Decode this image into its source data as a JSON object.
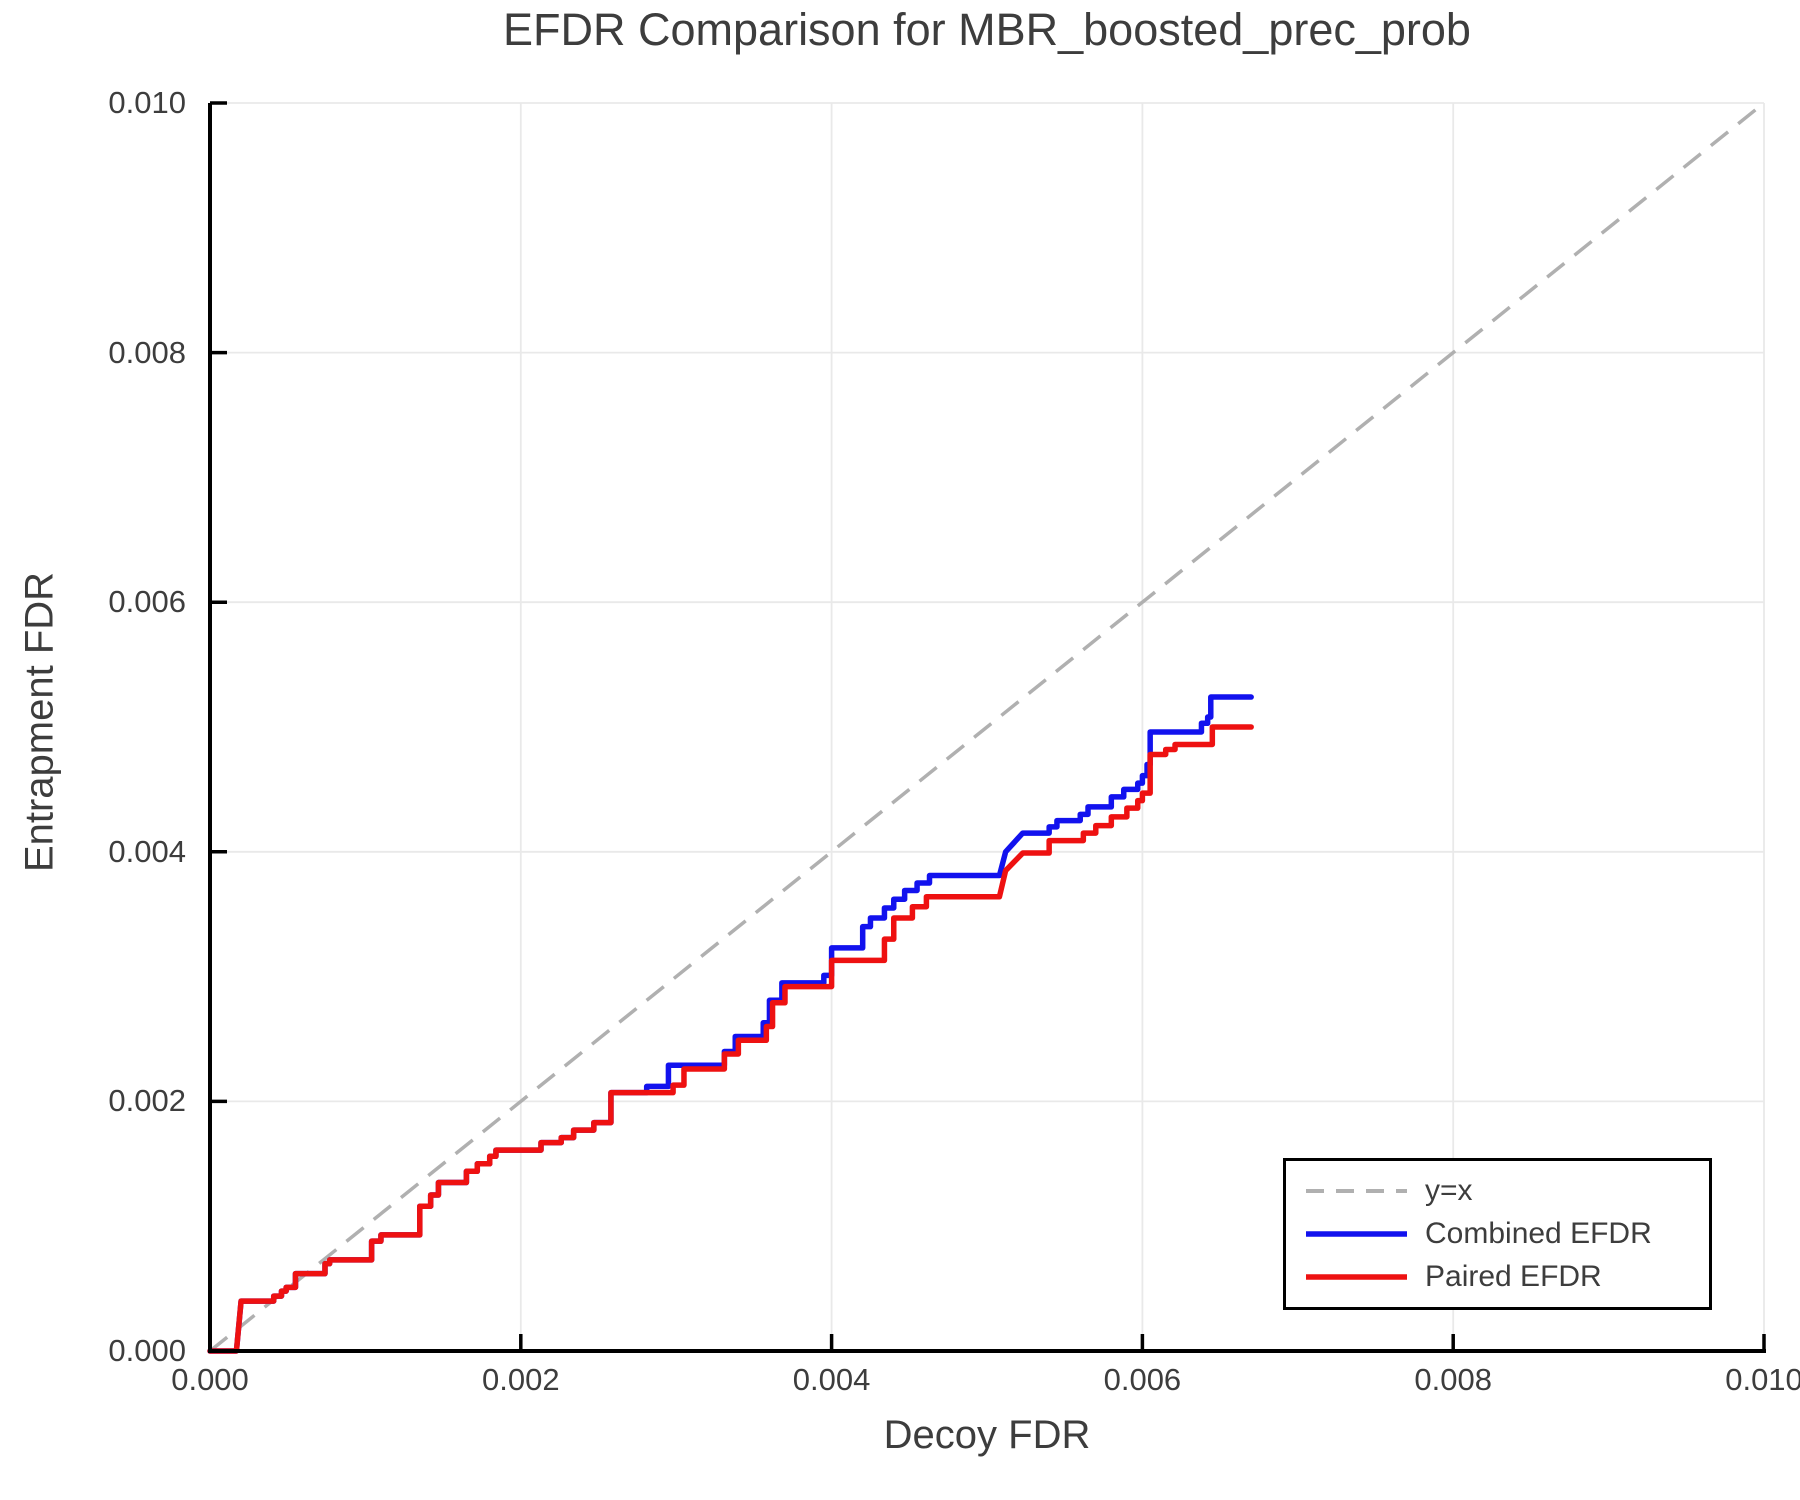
{
  "chart_data": {
    "type": "line",
    "title": "EFDR Comparison for MBR_boosted_prec_prob",
    "xlabel": "Decoy FDR",
    "ylabel": "Entrapment FDR",
    "xlim": [
      0,
      0.01
    ],
    "ylim": [
      0,
      0.01
    ],
    "xticks": [
      0,
      0.002,
      0.004,
      0.006,
      0.008,
      0.01
    ],
    "yticks": [
      0,
      0.002,
      0.004,
      0.006,
      0.008,
      0.01
    ],
    "xtick_labels": [
      "0.000",
      "0.002",
      "0.004",
      "0.006",
      "0.008",
      "0.010"
    ],
    "ytick_labels": [
      "0.000",
      "0.002",
      "0.004",
      "0.006",
      "0.008",
      "0.010"
    ],
    "grid": true,
    "grid_color": "#e9e9e9",
    "spine_color": "#000000",
    "text_color": "#3d3d3d",
    "legend_position": "lower right",
    "series": [
      {
        "name": "y=x",
        "color": "#b0b0b0",
        "style": "dashed",
        "width": 3.5,
        "points": [
          [
            0,
            0
          ],
          [
            0.01,
            0.01
          ]
        ]
      },
      {
        "name": "Combined EFDR",
        "color": "#1212ee",
        "style": "solid",
        "width": 5.5,
        "points": [
          [
            0,
            0
          ],
          [
            0.00017,
            0
          ],
          [
            0.0002,
            0.0004
          ],
          [
            0.00041,
            0.0004
          ],
          [
            0.00041,
            0.00044
          ],
          [
            0.00046,
            0.00044
          ],
          [
            0.00046,
            0.00048
          ],
          [
            0.00049,
            0.00048
          ],
          [
            0.00049,
            0.00051
          ],
          [
            0.00055,
            0.00051
          ],
          [
            0.00055,
            0.00062
          ],
          [
            0.00074,
            0.00062
          ],
          [
            0.00074,
            0.0007
          ],
          [
            0.00077,
            0.0007
          ],
          [
            0.00077,
            0.00073
          ],
          [
            0.00104,
            0.00073
          ],
          [
            0.00104,
            0.00088
          ],
          [
            0.0011,
            0.00088
          ],
          [
            0.0011,
            0.00093
          ],
          [
            0.00135,
            0.00093
          ],
          [
            0.00135,
            0.00116
          ],
          [
            0.00142,
            0.00116
          ],
          [
            0.00142,
            0.00125
          ],
          [
            0.00147,
            0.00125
          ],
          [
            0.00147,
            0.00135
          ],
          [
            0.00165,
            0.00135
          ],
          [
            0.00165,
            0.00144
          ],
          [
            0.00172,
            0.00144
          ],
          [
            0.00172,
            0.0015
          ],
          [
            0.0018,
            0.0015
          ],
          [
            0.0018,
            0.00156
          ],
          [
            0.00184,
            0.00156
          ],
          [
            0.00184,
            0.00161
          ],
          [
            0.00213,
            0.00161
          ],
          [
            0.00213,
            0.00167
          ],
          [
            0.00226,
            0.00167
          ],
          [
            0.00226,
            0.00171
          ],
          [
            0.00234,
            0.00171
          ],
          [
            0.00234,
            0.00177
          ],
          [
            0.00247,
            0.00177
          ],
          [
            0.00247,
            0.00183
          ],
          [
            0.00258,
            0.00183
          ],
          [
            0.00258,
            0.00207
          ],
          [
            0.00281,
            0.00207
          ],
          [
            0.00281,
            0.00212
          ],
          [
            0.00295,
            0.00212
          ],
          [
            0.00295,
            0.00229
          ],
          [
            0.00331,
            0.00229
          ],
          [
            0.00331,
            0.0024
          ],
          [
            0.00338,
            0.0024
          ],
          [
            0.00338,
            0.00252
          ],
          [
            0.00356,
            0.00252
          ],
          [
            0.00356,
            0.00263
          ],
          [
            0.0036,
            0.00263
          ],
          [
            0.0036,
            0.00281
          ],
          [
            0.00368,
            0.00281
          ],
          [
            0.00368,
            0.00295
          ],
          [
            0.00395,
            0.00295
          ],
          [
            0.00395,
            0.00301
          ],
          [
            0.004,
            0.00301
          ],
          [
            0.004,
            0.00323
          ],
          [
            0.0042,
            0.00323
          ],
          [
            0.0042,
            0.0034
          ],
          [
            0.00425,
            0.0034
          ],
          [
            0.00425,
            0.00347
          ],
          [
            0.00434,
            0.00347
          ],
          [
            0.00434,
            0.00355
          ],
          [
            0.0044,
            0.00355
          ],
          [
            0.0044,
            0.00362
          ],
          [
            0.00447,
            0.00362
          ],
          [
            0.00447,
            0.00369
          ],
          [
            0.00455,
            0.00369
          ],
          [
            0.00455,
            0.00375
          ],
          [
            0.00463,
            0.00375
          ],
          [
            0.00463,
            0.00381
          ],
          [
            0.00508,
            0.00381
          ],
          [
            0.00512,
            0.004
          ],
          [
            0.00523,
            0.00415
          ],
          [
            0.0054,
            0.00415
          ],
          [
            0.0054,
            0.0042
          ],
          [
            0.00545,
            0.0042
          ],
          [
            0.00545,
            0.00425
          ],
          [
            0.0056,
            0.00425
          ],
          [
            0.0056,
            0.0043
          ],
          [
            0.00565,
            0.0043
          ],
          [
            0.00565,
            0.00436
          ],
          [
            0.0058,
            0.00436
          ],
          [
            0.0058,
            0.00444
          ],
          [
            0.00588,
            0.00444
          ],
          [
            0.00588,
            0.0045
          ],
          [
            0.00597,
            0.0045
          ],
          [
            0.00597,
            0.00455
          ],
          [
            0.006,
            0.00455
          ],
          [
            0.006,
            0.00461
          ],
          [
            0.00603,
            0.00461
          ],
          [
            0.00603,
            0.0047
          ],
          [
            0.00605,
            0.0047
          ],
          [
            0.00605,
            0.00496
          ],
          [
            0.00638,
            0.00496
          ],
          [
            0.00638,
            0.00503
          ],
          [
            0.00642,
            0.00503
          ],
          [
            0.00642,
            0.00508
          ],
          [
            0.00644,
            0.00508
          ],
          [
            0.00644,
            0.00524
          ],
          [
            0.0067,
            0.00524
          ]
        ]
      },
      {
        "name": "Paired EFDR",
        "color": "#ee1111",
        "style": "solid",
        "width": 5.5,
        "points": [
          [
            0,
            0
          ],
          [
            0.00017,
            0
          ],
          [
            0.0002,
            0.0004
          ],
          [
            0.00041,
            0.0004
          ],
          [
            0.00041,
            0.00044
          ],
          [
            0.00046,
            0.00044
          ],
          [
            0.00046,
            0.00048
          ],
          [
            0.00049,
            0.00048
          ],
          [
            0.00049,
            0.00051
          ],
          [
            0.00055,
            0.00051
          ],
          [
            0.00055,
            0.00062
          ],
          [
            0.00074,
            0.00062
          ],
          [
            0.00074,
            0.0007
          ],
          [
            0.00077,
            0.0007
          ],
          [
            0.00077,
            0.00073
          ],
          [
            0.00104,
            0.00073
          ],
          [
            0.00104,
            0.00088
          ],
          [
            0.0011,
            0.00088
          ],
          [
            0.0011,
            0.00093
          ],
          [
            0.00135,
            0.00093
          ],
          [
            0.00135,
            0.00116
          ],
          [
            0.00142,
            0.00116
          ],
          [
            0.00142,
            0.00125
          ],
          [
            0.00147,
            0.00125
          ],
          [
            0.00147,
            0.00135
          ],
          [
            0.00165,
            0.00135
          ],
          [
            0.00165,
            0.00144
          ],
          [
            0.00172,
            0.00144
          ],
          [
            0.00172,
            0.0015
          ],
          [
            0.0018,
            0.0015
          ],
          [
            0.0018,
            0.00156
          ],
          [
            0.00184,
            0.00156
          ],
          [
            0.00184,
            0.00161
          ],
          [
            0.00213,
            0.00161
          ],
          [
            0.00213,
            0.00167
          ],
          [
            0.00226,
            0.00167
          ],
          [
            0.00226,
            0.00171
          ],
          [
            0.00234,
            0.00171
          ],
          [
            0.00234,
            0.00177
          ],
          [
            0.00247,
            0.00177
          ],
          [
            0.00247,
            0.00183
          ],
          [
            0.00258,
            0.00183
          ],
          [
            0.00258,
            0.00207
          ],
          [
            0.00298,
            0.00207
          ],
          [
            0.00298,
            0.00213
          ],
          [
            0.00305,
            0.00213
          ],
          [
            0.00305,
            0.00226
          ],
          [
            0.00331,
            0.00226
          ],
          [
            0.00331,
            0.00238
          ],
          [
            0.0034,
            0.00238
          ],
          [
            0.0034,
            0.00249
          ],
          [
            0.00358,
            0.00249
          ],
          [
            0.00358,
            0.0026
          ],
          [
            0.00362,
            0.0026
          ],
          [
            0.00362,
            0.00279
          ],
          [
            0.0037,
            0.00279
          ],
          [
            0.0037,
            0.00292
          ],
          [
            0.004,
            0.00292
          ],
          [
            0.004,
            0.00313
          ],
          [
            0.00434,
            0.00313
          ],
          [
            0.00434,
            0.0033
          ],
          [
            0.0044,
            0.0033
          ],
          [
            0.0044,
            0.00347
          ],
          [
            0.00452,
            0.00347
          ],
          [
            0.00452,
            0.00356
          ],
          [
            0.00461,
            0.00356
          ],
          [
            0.00461,
            0.00364
          ],
          [
            0.00508,
            0.00364
          ],
          [
            0.00512,
            0.00385
          ],
          [
            0.00523,
            0.00399
          ],
          [
            0.0054,
            0.00399
          ],
          [
            0.0054,
            0.00409
          ],
          [
            0.00562,
            0.00409
          ],
          [
            0.00562,
            0.00415
          ],
          [
            0.0057,
            0.00415
          ],
          [
            0.0057,
            0.00421
          ],
          [
            0.0058,
            0.00421
          ],
          [
            0.0058,
            0.00428
          ],
          [
            0.0059,
            0.00428
          ],
          [
            0.0059,
            0.00435
          ],
          [
            0.00597,
            0.00435
          ],
          [
            0.00597,
            0.00441
          ],
          [
            0.006,
            0.00441
          ],
          [
            0.006,
            0.00447
          ],
          [
            0.00605,
            0.00447
          ],
          [
            0.00605,
            0.00478
          ],
          [
            0.00615,
            0.00478
          ],
          [
            0.00615,
            0.00482
          ],
          [
            0.00621,
            0.00482
          ],
          [
            0.00621,
            0.00486
          ],
          [
            0.00645,
            0.00486
          ],
          [
            0.00645,
            0.005
          ],
          [
            0.0067,
            0.005
          ]
        ]
      }
    ]
  }
}
